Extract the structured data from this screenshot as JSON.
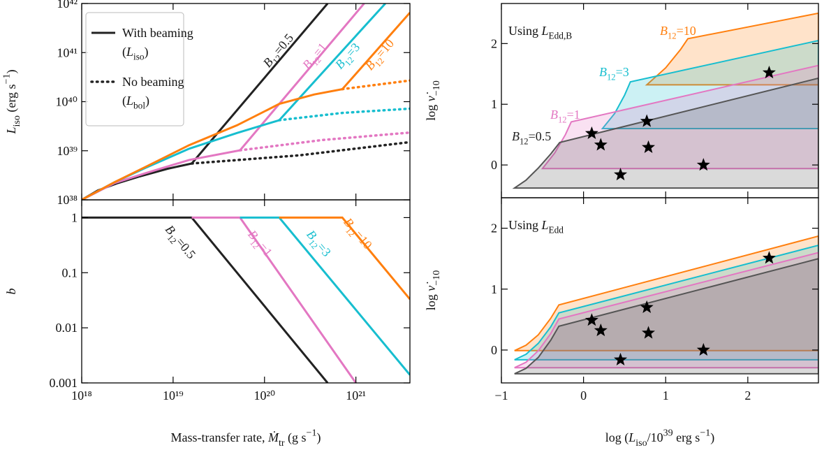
{
  "chart_data": [
    {
      "type": "line",
      "xscale": "log",
      "yscale": "log",
      "xlim": [
        1e+18,
        3.9e+21
      ],
      "ylim": [
        1e+38,
        1e+42
      ],
      "xticks": [
        1e+18,
        1e+19,
        1e+20,
        1e+21
      ],
      "xtick_labels": false,
      "yticks": [
        {
          "value": 1e+38,
          "label": "10³⁸"
        },
        {
          "value": 1e+39,
          "label": "10³⁹"
        },
        {
          "value": 1e+40,
          "label": "10⁴⁰"
        },
        {
          "value": 1e+41,
          "label": "10⁴¹"
        },
        {
          "value": 1e+42,
          "label": "10⁴²"
        }
      ],
      "ylabel": [
        {
          "t": "L",
          "i": true
        },
        {
          "t": "iso",
          "sub": true
        },
        {
          "t": " (erg s"
        },
        {
          "t": "−1",
          "sup": true
        },
        {
          "t": ")"
        }
      ],
      "legend_loc": "upper left",
      "legend": [
        {
          "style": "solid",
          "color": "#222",
          "lines": [
            [
              {
                "t": "With beaming"
              }
            ],
            [
              {
                "t": "("
              },
              {
                "t": "L",
                "i": true
              },
              {
                "t": "iso",
                "sub": true
              },
              {
                "t": ")"
              }
            ]
          ]
        },
        {
          "style": "dotted",
          "color": "#222",
          "lines": [
            [
              {
                "t": "No beaming"
              }
            ],
            [
              {
                "t": "("
              },
              {
                "t": "L",
                "i": true
              },
              {
                "t": "bol",
                "sub": true
              },
              {
                "t": ")"
              }
            ]
          ]
        }
      ],
      "series": [
        {
          "color": "#222",
          "dash": "solid",
          "x": [
            1e+18,
            1.5e+18,
            2.5e+18,
            4.3e+18,
            8.7e+18,
            1.6e+19,
            4.9e+20
          ],
          "values": [
            1e+38,
            1.55e+38,
            2.2e+38,
            3e+38,
            4.3e+38,
            5.5e+38,
            1e+42
          ]
        },
        {
          "color": "#e377c2",
          "dash": "solid",
          "x": [
            1e+18,
            2.3e+18,
            5e+18,
            1.5e+19,
            5.4e+19,
            1.23e+21
          ],
          "values": [
            1e+38,
            2.2e+38,
            3.5e+38,
            6.5e+38,
            1.02e+39,
            1e+42
          ]
        },
        {
          "color": "#17becf",
          "dash": "solid",
          "x": [
            1e+18,
            2.3e+18,
            5e+18,
            1.5e+19,
            5e+19,
            1.45e+20,
            2.1e+21
          ],
          "values": [
            1e+38,
            2.3e+38,
            4.5e+38,
            1.1e+39,
            2.3e+39,
            4.2e+39,
            1e+42
          ]
        },
        {
          "color": "#ff7f0e",
          "dash": "solid",
          "x": [
            1e+18,
            2.3e+18,
            5e+18,
            1.5e+19,
            5e+19,
            1.45e+20,
            3.5e+20,
            7.1e+20,
            3.9e+21
          ],
          "values": [
            1e+38,
            2.3e+38,
            4.7e+38,
            1.3e+39,
            3.3e+39,
            9e+39,
            1.4e+40,
            1.8e+40,
            6.5e+41
          ]
        },
        {
          "color": "#222",
          "dash": "dotted",
          "x": [
            1.6e+19,
            2.45e+20,
            3.9e+21
          ],
          "values": [
            5.5e+38,
            8.1e+38,
            1.5e+39
          ]
        },
        {
          "color": "#e377c2",
          "dash": "dotted",
          "x": [
            5.4e+19,
            4.2e+20,
            3.9e+21
          ],
          "values": [
            1.02e+39,
            1.65e+39,
            2.35e+39
          ]
        },
        {
          "color": "#17becf",
          "dash": "dotted",
          "x": [
            1.45e+20,
            7.1e+20,
            3.9e+21
          ],
          "values": [
            4.2e+39,
            5.9e+39,
            7.2e+39
          ]
        },
        {
          "color": "#ff7f0e",
          "dash": "dotted",
          "x": [
            7.1e+20,
            3.9e+21
          ],
          "values": [
            1.8e+40,
            2.7e+40
          ]
        }
      ],
      "annotations": [
        {
          "color": "#222",
          "text": [
            {
              "t": "B",
              "i": true
            },
            {
              "t": "12",
              "sub": true
            },
            {
              "t": "=0.5"
            }
          ]
        },
        {
          "color": "#e377c2",
          "text": [
            {
              "t": "B",
              "i": true
            },
            {
              "t": "12",
              "sub": true
            },
            {
              "t": "=1"
            }
          ]
        },
        {
          "color": "#17becf",
          "text": [
            {
              "t": "B",
              "i": true
            },
            {
              "t": "12",
              "sub": true
            },
            {
              "t": "=3"
            }
          ]
        },
        {
          "color": "#ff7f0e",
          "text": [
            {
              "t": "B",
              "i": true
            },
            {
              "t": "12",
              "sub": true
            },
            {
              "t": "=10"
            }
          ]
        }
      ]
    },
    {
      "type": "line",
      "xscale": "log",
      "yscale": "log",
      "xlim": [
        1e+18,
        3.9e+21
      ],
      "ylim": [
        0.001,
        2.1
      ],
      "xticks": [
        {
          "value": 1e+18,
          "label": "10¹⁸"
        },
        {
          "value": 1e+19,
          "label": "10¹⁹"
        },
        {
          "value": 1e+20,
          "label": "10²⁰"
        },
        {
          "value": 1e+21,
          "label": "10²¹"
        }
      ],
      "yticks": [
        0.001,
        0.01,
        0.1,
        1
      ],
      "xlabel": [
        {
          "t": "Mass-transfer rate, "
        },
        {
          "t": "Ṁ",
          "i": true
        },
        {
          "t": "tr",
          "sub": true
        },
        {
          "t": "  (g s"
        },
        {
          "t": "−1",
          "sup": true
        },
        {
          "t": ")"
        }
      ],
      "ylabel": [
        {
          "t": "b",
          "i": true
        }
      ],
      "series": [
        {
          "color": "#222",
          "dash": "solid",
          "x": [
            1e+18,
            1.6e+19,
            4.9e+20
          ],
          "values": [
            1,
            1,
            0.001
          ]
        },
        {
          "color": "#e377c2",
          "dash": "solid",
          "x": [
            1.6e+19,
            5.4e+19,
            1e+21
          ],
          "values": [
            1,
            1,
            0.001
          ]
        },
        {
          "color": "#17becf",
          "dash": "solid",
          "x": [
            5.4e+19,
            1.45e+20,
            3.9e+21
          ],
          "values": [
            1,
            1,
            0.0014
          ]
        },
        {
          "color": "#ff7f0e",
          "dash": "solid",
          "x": [
            1.45e+20,
            7.1e+20,
            3.9e+21
          ],
          "values": [
            1,
            1,
            0.033
          ]
        }
      ],
      "annotations": [
        {
          "color": "#222",
          "text": [
            {
              "t": "B",
              "i": true
            },
            {
              "t": "12",
              "sub": true
            },
            {
              "t": "=0.5"
            }
          ]
        },
        {
          "color": "#e377c2",
          "text": [
            {
              "t": "B",
              "i": true
            },
            {
              "t": "12",
              "sub": true
            },
            {
              "t": "=1"
            }
          ]
        },
        {
          "color": "#17becf",
          "text": [
            {
              "t": "B",
              "i": true
            },
            {
              "t": "12",
              "sub": true
            },
            {
              "t": "=3"
            }
          ]
        },
        {
          "color": "#ff7f0e",
          "text": [
            {
              "t": "B",
              "i": true
            },
            {
              "t": "12",
              "sub": true
            },
            {
              "t": "=10"
            }
          ]
        }
      ]
    },
    {
      "type": "area",
      "xlim": [
        -1,
        2.86
      ],
      "ylim": [
        -0.54,
        2.66
      ],
      "xticks": [
        -1,
        0,
        1,
        2
      ],
      "xtick_labels": false,
      "yticks": [
        0,
        1,
        2
      ],
      "ylabel": [
        {
          "t": "log "
        },
        {
          "t": "ν̇",
          "i": true
        },
        {
          "t": "−10",
          "sub": true
        }
      ],
      "panel_label": [
        {
          "t": "Using "
        },
        {
          "t": "L",
          "i": true
        },
        {
          "t": "Edd,B",
          "sub": true
        }
      ],
      "series": [
        {
          "color": "#ff7f0e",
          "x": [
            0.77,
            1.0,
            1.18,
            1.27,
            2.86,
            2.86
          ],
          "values": [
            1.32,
            1.6,
            1.9,
            2.08,
            2.5,
            1.32
          ]
        },
        {
          "color": "#17becf",
          "x": [
            0.23,
            0.38,
            0.5,
            0.57,
            2.86,
            2.86
          ],
          "values": [
            0.6,
            0.85,
            1.15,
            1.37,
            2.05,
            0.6
          ]
        },
        {
          "color": "#e377c2",
          "x": [
            -0.5,
            -0.35,
            -0.22,
            -0.15,
            2.86,
            2.86
          ],
          "values": [
            -0.06,
            0.2,
            0.5,
            0.71,
            1.64,
            -0.06
          ]
        },
        {
          "color": "#555555",
          "x": [
            -0.84,
            -0.7,
            -0.55,
            -0.4,
            -0.29,
            2.86,
            2.86
          ],
          "values": [
            -0.38,
            -0.25,
            -0.05,
            0.18,
            0.37,
            1.43,
            -0.38
          ]
        }
      ],
      "stars": {
        "color": "#000",
        "x": [
          0.1,
          0.21,
          0.45,
          0.77,
          0.79,
          1.46,
          2.26
        ],
        "values": [
          0.52,
          0.33,
          -0.16,
          0.72,
          0.29,
          0,
          1.52
        ]
      },
      "annotations": [
        {
          "color": "#ff7f0e",
          "text": [
            {
              "t": "B",
              "i": true
            },
            {
              "t": "12",
              "sub": true
            },
            {
              "t": "=10"
            }
          ]
        },
        {
          "color": "#17becf",
          "text": [
            {
              "t": "B",
              "i": true
            },
            {
              "t": "12",
              "sub": true
            },
            {
              "t": "=3"
            }
          ]
        },
        {
          "color": "#e377c2",
          "text": [
            {
              "t": "B",
              "i": true
            },
            {
              "t": "12",
              "sub": true
            },
            {
              "t": "=1"
            }
          ]
        },
        {
          "color": "#222",
          "text": [
            {
              "t": "B",
              "i": true
            },
            {
              "t": "12",
              "sub": true
            },
            {
              "t": "=0.5"
            }
          ]
        }
      ]
    },
    {
      "type": "area",
      "xlim": [
        -1,
        2.86
      ],
      "ylim": [
        -0.54,
        2.5
      ],
      "xticks": [
        {
          "value": -1,
          "label": "−1"
        },
        0,
        1,
        2
      ],
      "yticks": [
        0,
        1,
        2
      ],
      "xlabel": [
        {
          "t": "log ("
        },
        {
          "t": "L",
          "i": true
        },
        {
          "t": "iso",
          "sub": true
        },
        {
          "t": "/10"
        },
        {
          "t": "39",
          "sup": true
        },
        {
          "t": " erg s"
        },
        {
          "t": "−1",
          "sup": true
        },
        {
          "t": ")"
        }
      ],
      "ylabel": [
        {
          "t": "log "
        },
        {
          "t": "ν̇",
          "i": true
        },
        {
          "t": "−10",
          "sub": true
        }
      ],
      "panel_label": [
        {
          "t": "Using "
        },
        {
          "t": "L",
          "i": true
        },
        {
          "t": "Edd",
          "sub": true
        }
      ],
      "series": [
        {
          "color": "#ff7f0e",
          "x": [
            -0.84,
            -0.7,
            -0.55,
            -0.4,
            -0.3,
            2.86,
            2.86
          ],
          "values": [
            -0.01,
            0.08,
            0.25,
            0.52,
            0.74,
            1.87,
            -0.01
          ]
        },
        {
          "color": "#17becf",
          "x": [
            -0.84,
            -0.7,
            -0.55,
            -0.4,
            -0.3,
            2.86,
            2.86
          ],
          "values": [
            -0.16,
            -0.07,
            0.11,
            0.38,
            0.61,
            1.72,
            -0.16
          ]
        },
        {
          "color": "#e377c2",
          "x": [
            -0.84,
            -0.7,
            -0.55,
            -0.4,
            -0.3,
            2.86,
            2.86
          ],
          "values": [
            -0.29,
            -0.2,
            -0.01,
            0.27,
            0.51,
            1.6,
            -0.29
          ]
        },
        {
          "color": "#555555",
          "x": [
            -0.84,
            -0.7,
            -0.55,
            -0.4,
            -0.3,
            2.86,
            2.86
          ],
          "values": [
            -0.39,
            -0.3,
            -0.12,
            0.16,
            0.39,
            1.5,
            -0.39
          ]
        }
      ],
      "stars": {
        "color": "#000",
        "x": [
          0.1,
          0.21,
          0.45,
          0.77,
          0.79,
          1.46,
          2.26
        ],
        "values": [
          0.49,
          0.32,
          -0.16,
          0.7,
          0.28,
          0,
          1.51
        ]
      }
    }
  ]
}
